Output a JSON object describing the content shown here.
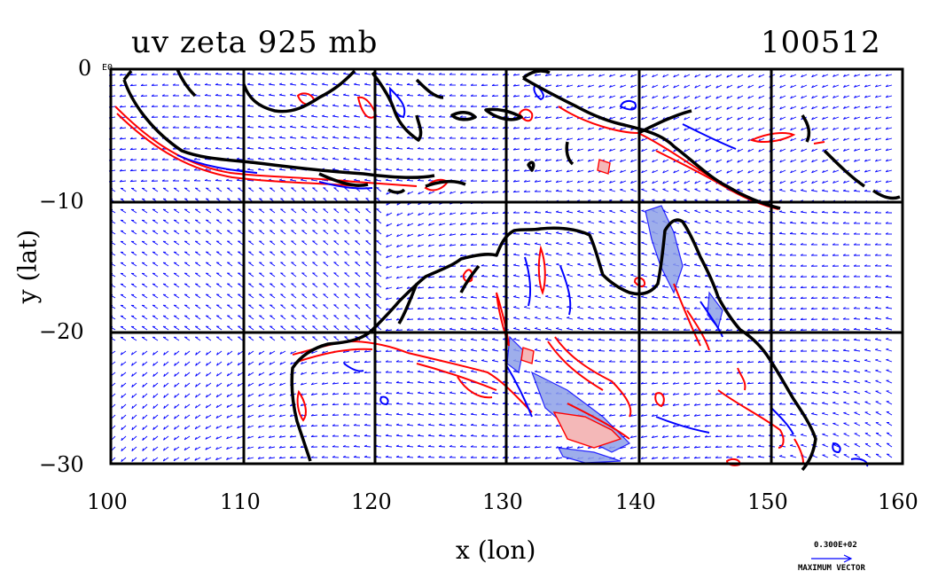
{
  "title_left": "uv zeta 925 mb",
  "title_right": "100512",
  "xlabel": "x (lon)",
  "ylabel": "y (lat)",
  "corner_label": "E0",
  "x_ticks": [
    "100",
    "110",
    "120",
    "130",
    "140",
    "150",
    "160"
  ],
  "y_ticks": [
    "0",
    "−10",
    "−20",
    "−30"
  ],
  "max_vector": {
    "value": "0.300E+02",
    "label": "MAXIMUM VECTOR"
  },
  "colors": {
    "coast": "#000000",
    "wind_vectors": "#0000ff",
    "positive_vorticity": "#ff0000",
    "negative_vorticity": "#0000ff",
    "negative_fill": "#8ea0e8",
    "positive_fill": "#f4b8b8"
  },
  "map": {
    "lon_range": [
      100,
      160
    ],
    "lat_range": [
      -30,
      0
    ],
    "grid_lon_step": 10,
    "grid_lat_step": 10,
    "grid": true
  }
}
